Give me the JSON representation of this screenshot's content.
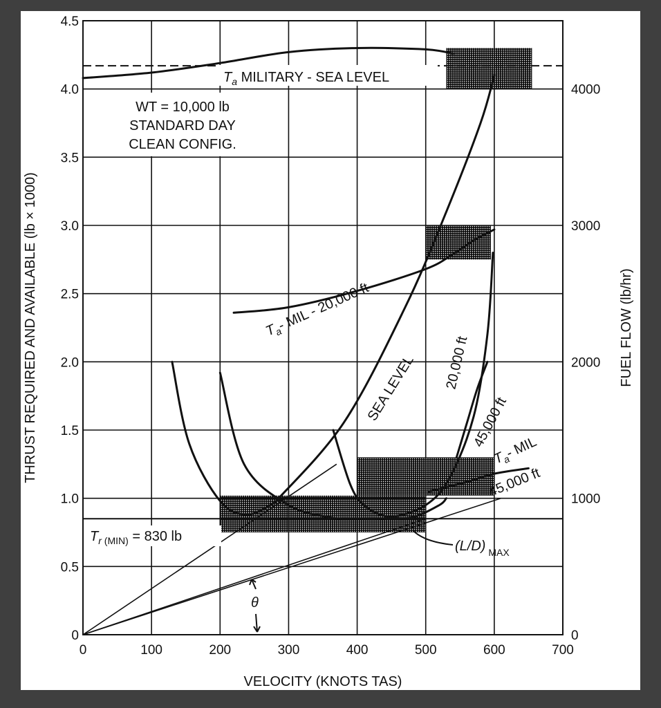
{
  "chart_data": {
    "type": "line",
    "xlabel": "VELOCITY (KNOTS TAS)",
    "ylabel": "THRUST REQUIRED AND AVAILABLE (lb × 1000)",
    "y2label": "FUEL FLOW (lb/hr)",
    "xlim": [
      0,
      700
    ],
    "ylim": [
      0,
      4.5
    ],
    "y2lim": [
      0,
      4500
    ],
    "x_ticks": [
      "0",
      "100",
      "200",
      "300",
      "400",
      "500",
      "600",
      "700"
    ],
    "y_ticks": [
      "0",
      "0.5",
      "1.0",
      "1.5",
      "2.0",
      "2.5",
      "3.0",
      "3.5",
      "4.0",
      "4.5"
    ],
    "y2_ticks": [
      "0",
      "1000",
      "2000",
      "3000",
      "4000"
    ],
    "grid": true,
    "notes": [
      "WT = 10,000 lb",
      "STANDARD DAY",
      "CLEAN CONFIG."
    ],
    "annotations": {
      "ta_sea_level_prefix": "T",
      "ta_sub": "a",
      "ta_sea_level_rest": " MILITARY - SEA LEVEL",
      "ta_20000_rest": "- MIL - 20,000 ft",
      "sea_level": "SEA LEVEL",
      "alt_20000": "20,000 ft",
      "alt_45000": "45,000 ft",
      "ta_mil": "- MIL",
      "ta_mil_45000": "45,000 ft",
      "tr_prefix": "T",
      "tr_sub": "r",
      "tr_min_small": " (MIN)",
      "tr_min_rest": " = 830 lb",
      "ld_max": "(L/D)",
      "ld_max_sub": " MAX",
      "theta": "θ"
    },
    "reference_lines": [
      {
        "kind": "horizontal-dashed",
        "y": 4.17
      },
      {
        "kind": "horizontal",
        "y": 0.85
      }
    ],
    "series": [
      {
        "x": [
          0,
          100,
          200,
          300,
          400,
          500,
          540
        ],
        "y": [
          4.08,
          4.12,
          4.19,
          4.27,
          4.3,
          4.29,
          4.26
        ]
      },
      {
        "x": [
          220,
          300,
          400,
          500,
          540,
          570,
          600
        ],
        "y": [
          2.36,
          2.4,
          2.52,
          2.68,
          2.79,
          2.89,
          2.97
        ]
      },
      {
        "x": [
          505,
          560,
          600,
          650
        ],
        "y": [
          1.05,
          1.12,
          1.18,
          1.22
        ]
      },
      {
        "x": [
          130,
          155,
          200,
          240,
          280
        ],
        "y": [
          2.0,
          1.4,
          0.98,
          0.88,
          0.97
        ]
      },
      {
        "x": [
          280,
          380,
          470,
          530,
          580,
          600
        ],
        "y": [
          0.97,
          1.55,
          2.4,
          3.1,
          3.75,
          4.1
        ]
      },
      {
        "x": [
          200,
          235,
          300,
          360,
          400,
          450,
          500,
          535,
          570,
          590,
          598
        ],
        "y": [
          1.92,
          1.25,
          0.95,
          0.86,
          0.85,
          0.86,
          0.95,
          1.15,
          1.6,
          2.2,
          2.8
        ]
      },
      {
        "x": [
          365,
          390,
          410,
          440,
          480,
          520,
          530
        ],
        "y": [
          1.5,
          1.1,
          0.95,
          0.87,
          0.86,
          0.95,
          1.0
        ]
      },
      {
        "x": [
          545,
          560,
          575,
          590
        ],
        "y": [
          1.3,
          1.55,
          1.8,
          2.0
        ]
      }
    ],
    "rays": [
      {
        "x": [
          0,
          370
        ],
        "y": [
          0,
          1.25
        ]
      },
      {
        "x": [
          0,
          610
        ],
        "y": [
          0,
          1.0
        ]
      },
      {
        "x": [
          0,
          500
        ],
        "y": [
          0,
          0.85
        ]
      }
    ],
    "hatched_regions": [
      {
        "x": [
          530,
          655
        ],
        "y": [
          4.0,
          4.3
        ]
      },
      {
        "x": [
          500,
          595
        ],
        "y": [
          2.75,
          3.0
        ]
      },
      {
        "x": [
          200,
          500
        ],
        "y": [
          0.75,
          1.02
        ]
      },
      {
        "x": [
          400,
          600
        ],
        "y": [
          1.02,
          1.3
        ]
      }
    ]
  }
}
